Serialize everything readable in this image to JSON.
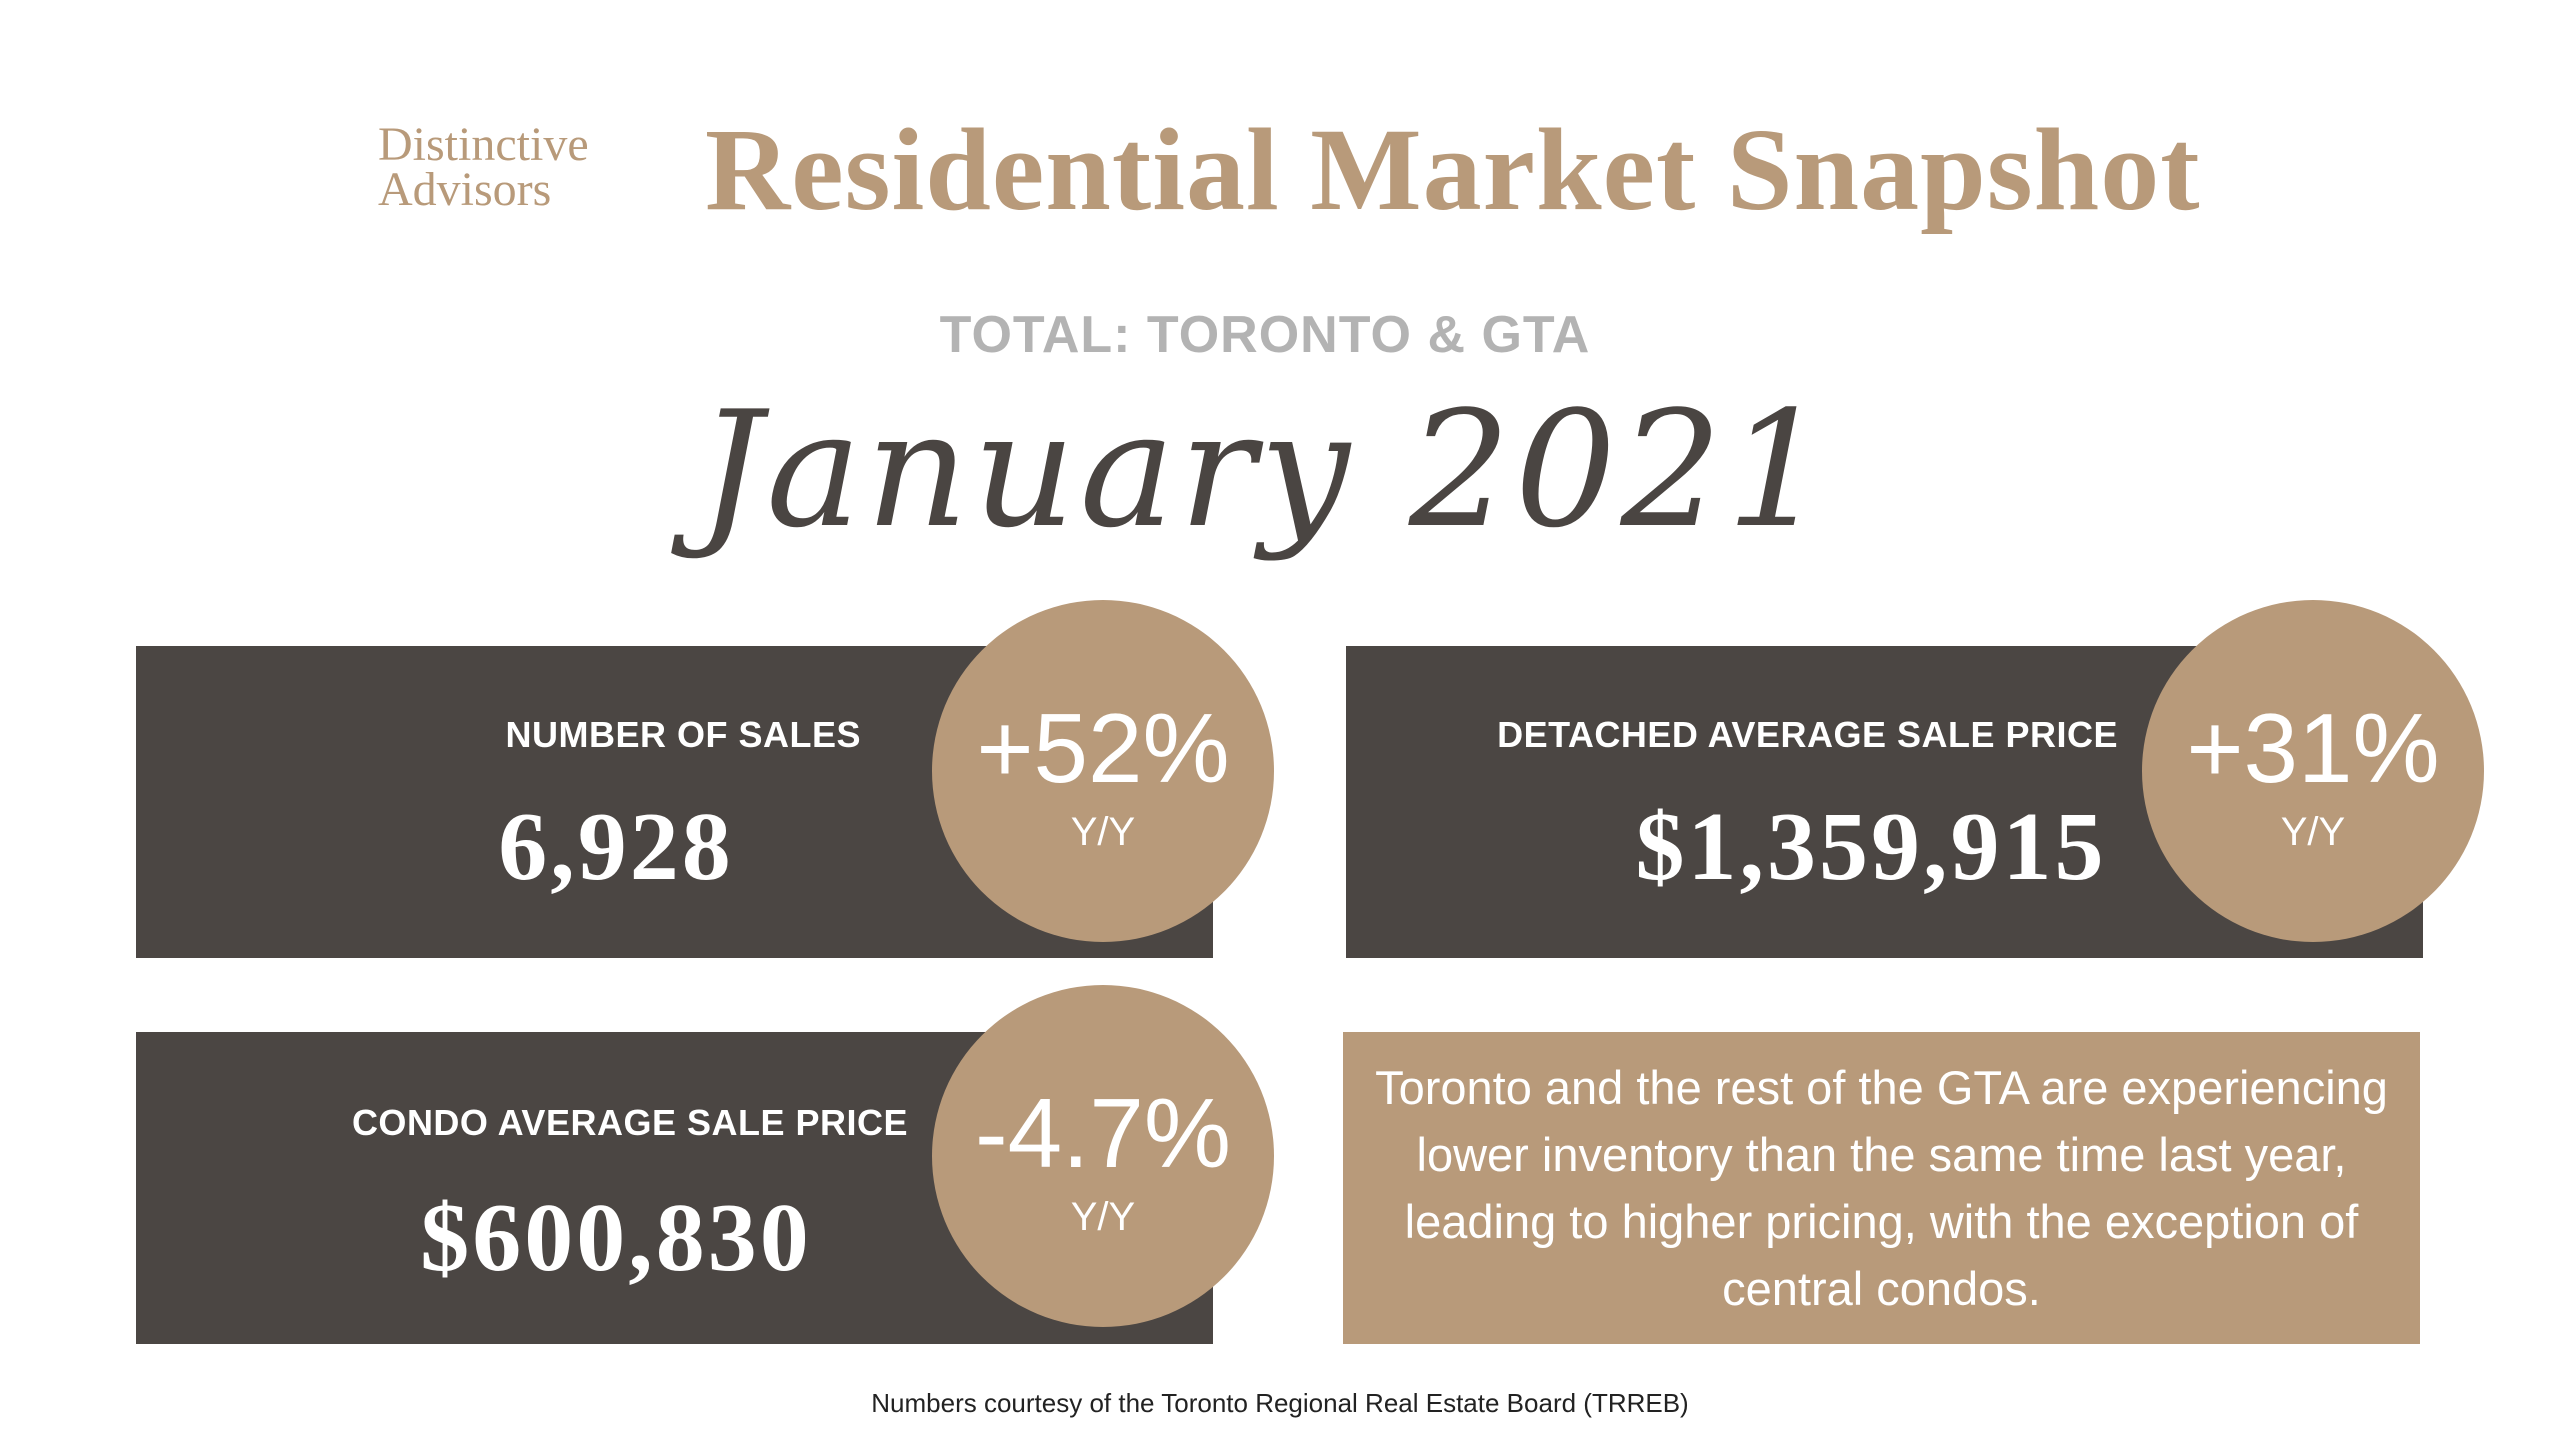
{
  "brand": {
    "line1": "Distinctive",
    "line2": "Advisors"
  },
  "header": {
    "title": "Residential Market Snapshot",
    "subtitle": "TOTAL: TORONTO & GTA",
    "month": "January 2021"
  },
  "stats": [
    {
      "label": "NUMBER OF SALES",
      "value": "6,928",
      "change": "+52%",
      "period": "Y/Y"
    },
    {
      "label": "DETACHED AVERAGE SALE PRICE",
      "value": "$1,359,915",
      "change": "+31%",
      "period": "Y/Y"
    },
    {
      "label": "CONDO AVERAGE SALE PRICE",
      "value": "$600,830",
      "change": "-4.7%",
      "period": "Y/Y"
    }
  ],
  "note": "Toronto and the rest of the GTA are experiencing lower inventory than the same time last year, leading to higher pricing, with the exception of central condos.",
  "footer": "Numbers courtesy of the Toronto Regional Real Estate Board (TRREB)",
  "colors": {
    "accent": "#b89a7a",
    "card": "#4b4643",
    "subtitle": "#b3b3b3"
  }
}
